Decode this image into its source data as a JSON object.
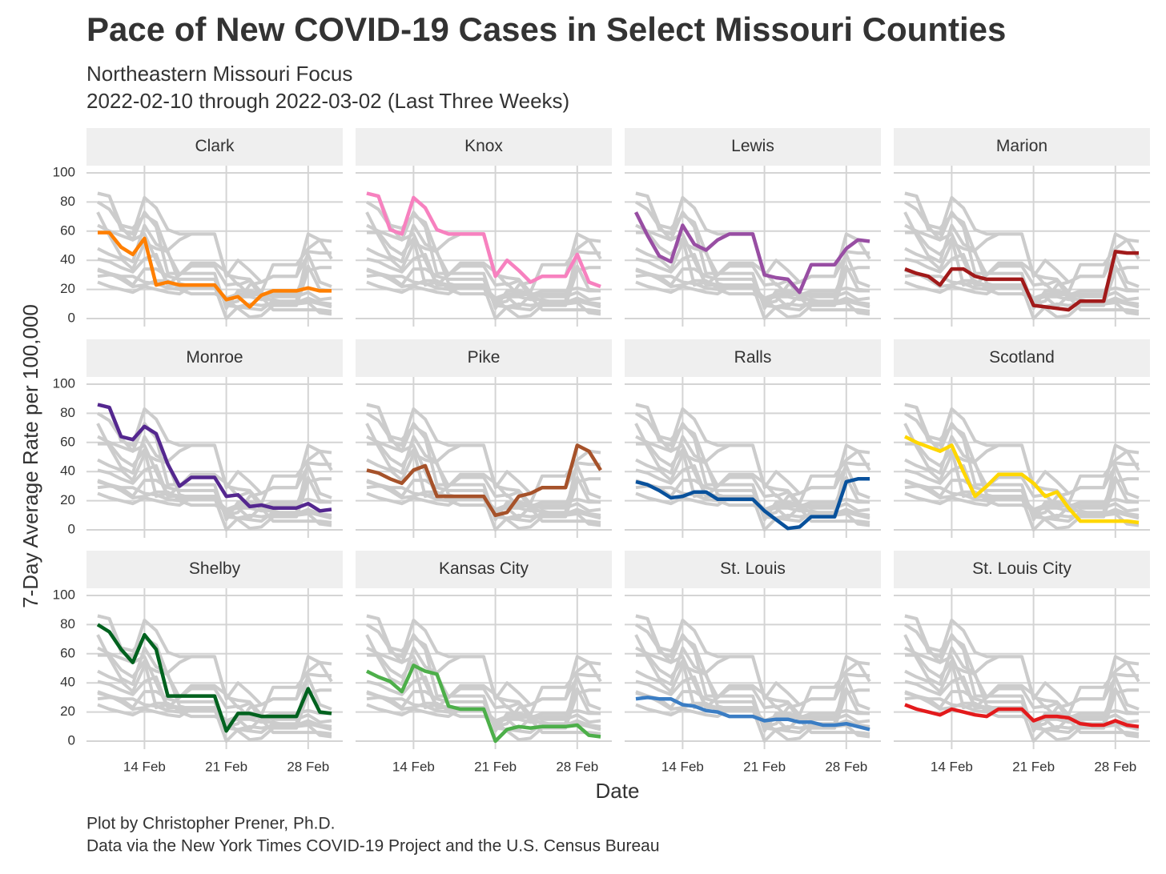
{
  "chart_data": {
    "type": "line",
    "title": "Pace of New COVID-19 Cases in Select Missouri Counties",
    "subtitle": [
      "Northeastern Missouri Focus",
      "2022-02-10 through 2022-03-02 (Last Three Weeks)"
    ],
    "x_label": "Date",
    "y_label": "7-Day Average Rate per 100,000",
    "caption": [
      "Plot by Christopher Prener, Ph.D.",
      "Data via the New York Times COVID-19 Project and the U.S. Census Bureau"
    ],
    "x": [
      "2022-02-10",
      "2022-02-11",
      "2022-02-12",
      "2022-02-13",
      "2022-02-14",
      "2022-02-15",
      "2022-02-16",
      "2022-02-17",
      "2022-02-18",
      "2022-02-19",
      "2022-02-20",
      "2022-02-21",
      "2022-02-22",
      "2022-02-23",
      "2022-02-24",
      "2022-02-25",
      "2022-02-26",
      "2022-02-27",
      "2022-02-28",
      "2022-03-01",
      "2022-03-02"
    ],
    "xlim": [
      "2022-02-10",
      "2022-03-02"
    ],
    "xticks": [
      {
        "value": "2022-02-14",
        "label": "14 Feb"
      },
      {
        "value": "2022-02-21",
        "label": "21 Feb"
      },
      {
        "value": "2022-02-28",
        "label": "28 Feb"
      }
    ],
    "ylim": [
      0,
      100
    ],
    "yticks": [
      0,
      20,
      40,
      60,
      80,
      100
    ],
    "grid": true,
    "context_color": "#cccccc",
    "series": [
      {
        "name": "Clark",
        "color": "#ff7f00",
        "values": [
          59,
          59,
          49,
          44,
          55,
          23,
          25,
          23,
          23,
          23,
          23,
          13,
          15,
          8,
          16,
          19,
          19,
          19,
          21,
          19,
          19
        ]
      },
      {
        "name": "Knox",
        "color": "#f781bf",
        "values": [
          86,
          84,
          61,
          58,
          83,
          76,
          61,
          58,
          58,
          58,
          58,
          29,
          40,
          33,
          25,
          29,
          29,
          29,
          44,
          25,
          22
        ]
      },
      {
        "name": "Lewis",
        "color": "#984ea3",
        "values": [
          73,
          57,
          43,
          39,
          64,
          51,
          47,
          54,
          58,
          58,
          58,
          30,
          28,
          27,
          18,
          37,
          37,
          37,
          48,
          54,
          53
        ]
      },
      {
        "name": "Marion",
        "color": "#a11a1a",
        "values": [
          34,
          31,
          29,
          23,
          34,
          34,
          29,
          27,
          27,
          27,
          27,
          9,
          8,
          7,
          6,
          12,
          12,
          12,
          46,
          45,
          45
        ]
      },
      {
        "name": "Monroe",
        "color": "#54278f",
        "values": [
          86,
          84,
          64,
          62,
          71,
          66,
          45,
          30,
          36,
          36,
          36,
          23,
          24,
          16,
          17,
          15,
          15,
          15,
          18,
          13,
          14
        ]
      },
      {
        "name": "Pike",
        "color": "#a6522a",
        "values": [
          41,
          39,
          35,
          32,
          41,
          44,
          23,
          23,
          23,
          23,
          23,
          10,
          12,
          23,
          25,
          29,
          29,
          29,
          58,
          54,
          41
        ]
      },
      {
        "name": "Ralls",
        "color": "#08519c",
        "values": [
          33,
          31,
          27,
          22,
          23,
          26,
          26,
          21,
          21,
          21,
          21,
          13,
          7,
          1,
          2,
          9,
          9,
          9,
          33,
          35,
          35
        ]
      },
      {
        "name": "Scotland",
        "color": "#ffd700",
        "values": [
          64,
          60,
          57,
          54,
          58,
          40,
          23,
          30,
          38,
          38,
          38,
          32,
          23,
          26,
          15,
          6,
          6,
          6,
          6,
          6,
          5
        ]
      },
      {
        "name": "Shelby",
        "color": "#00621f",
        "values": [
          80,
          75,
          63,
          54,
          73,
          63,
          31,
          31,
          31,
          31,
          31,
          7,
          19,
          19,
          17,
          17,
          17,
          17,
          36,
          20,
          19
        ]
      },
      {
        "name": "Kansas City",
        "color": "#4daf4a",
        "values": [
          48,
          44,
          41,
          34,
          52,
          48,
          46,
          24,
          22,
          22,
          22,
          0,
          8,
          10,
          9,
          10,
          10,
          10,
          11,
          4,
          3
        ]
      },
      {
        "name": "St. Louis",
        "color": "#3a7dc4",
        "values": [
          29,
          30,
          29,
          29,
          25,
          24,
          21,
          20,
          17,
          17,
          17,
          14,
          15,
          15,
          13,
          13,
          11,
          11,
          12,
          10,
          8
        ]
      },
      {
        "name": "St. Louis City",
        "color": "#e31a1c",
        "values": [
          25,
          22,
          20,
          18,
          22,
          20,
          18,
          17,
          22,
          22,
          22,
          14,
          17,
          17,
          16,
          12,
          11,
          11,
          14,
          11,
          10
        ]
      }
    ]
  }
}
